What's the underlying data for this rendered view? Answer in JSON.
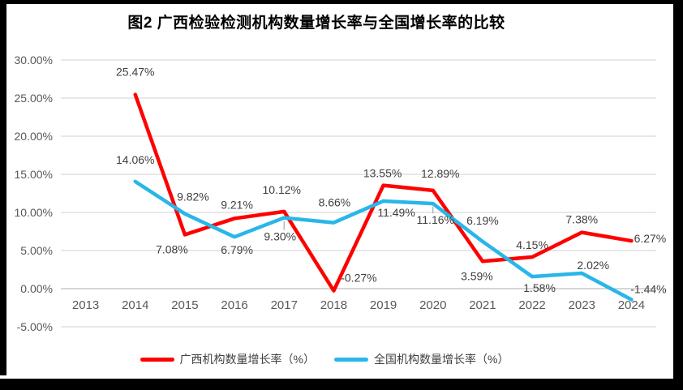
{
  "title": {
    "text": "图2 广西检验检测机构数量增长率与全国增长率的比较"
  },
  "chart_data": {
    "type": "line",
    "title": "图2 广西检验检测机构数量增长率与全国增长率的比较",
    "categories": [
      "2013",
      "2014",
      "2015",
      "2016",
      "2017",
      "2018",
      "2019",
      "2020",
      "2021",
      "2022",
      "2023",
      "2024"
    ],
    "series": [
      {
        "name": "广西机构数量增长率（%）",
        "color": "#FF0000",
        "values": [
          null,
          25.47,
          7.08,
          9.21,
          10.12,
          -0.27,
          13.55,
          12.89,
          3.59,
          4.15,
          7.38,
          6.27
        ],
        "labels": [
          null,
          "25.47%",
          "7.08%",
          "9.21%",
          "10.12%",
          "-0.27%",
          "13.55%",
          "12.89%",
          "3.59%",
          "4.15%",
          "7.38%",
          "6.27%"
        ],
        "label_offsets": [
          null,
          [
            0,
            -28
          ],
          [
            -16,
            18
          ],
          [
            3,
            -17
          ],
          [
            -3,
            -27
          ],
          [
            31,
            -16
          ],
          [
            -1,
            -15
          ],
          [
            9,
            -21
          ],
          [
            -7,
            18
          ],
          [
            0,
            -15
          ],
          [
            0,
            -16
          ],
          [
            23,
            -3
          ]
        ]
      },
      {
        "name": "全国机构数量增长率（%）",
        "color": "#29B6E8",
        "values": [
          null,
          14.06,
          9.82,
          6.79,
          9.3,
          8.66,
          11.49,
          11.16,
          6.19,
          1.58,
          2.02,
          -1.44
        ],
        "labels": [
          null,
          "14.06%",
          "9.82%",
          "6.79%",
          "9.30%",
          "8.66%",
          "11.49%",
          "11.16%",
          "6.19%",
          "1.58%",
          "2.02%",
          "-1.44%"
        ],
        "label_offsets": [
          null,
          [
            0,
            -27
          ],
          [
            10,
            -21
          ],
          [
            3,
            16
          ],
          [
            -5,
            23
          ],
          [
            1,
            -25
          ],
          [
            16,
            14
          ],
          [
            3,
            20
          ],
          [
            0,
            -26
          ],
          [
            9,
            14
          ],
          [
            14,
            -10
          ],
          [
            21,
            -13
          ]
        ]
      }
    ],
    "y_ticks": [
      "30.00%",
      "25.00%",
      "20.00%",
      "15.00%",
      "10.00%",
      "5.00%",
      "0.00%",
      "-5.00%"
    ],
    "ylim": [
      -5,
      30
    ],
    "y_tick_step": 5,
    "xlabel": "",
    "ylabel": "",
    "grid": true,
    "legend_position": "bottom",
    "grid_color": "#D9D9D9",
    "axis_color": "#BFBFBF",
    "tick_label_color": "#595959",
    "data_label_color": "#404040",
    "leader_line_color": "#A6A6A6",
    "leader_lines": [
      {
        "series": 1,
        "x_index": 4,
        "length": 15
      },
      {
        "series": 1,
        "x_index": 7,
        "length": 12
      }
    ]
  }
}
